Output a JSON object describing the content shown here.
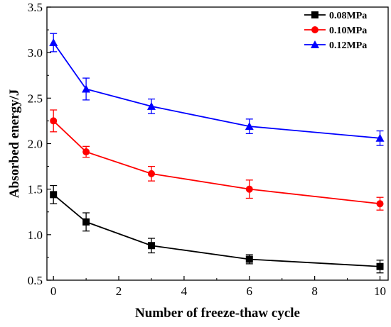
{
  "chart_data": {
    "type": "line",
    "xlabel": "Number of freeze-thaw cycle",
    "ylabel": "Absorbed energy/J",
    "xlim": [
      -0.2,
      10.25
    ],
    "ylim": [
      0.5,
      3.5
    ],
    "xticks": [
      0,
      2,
      4,
      6,
      8,
      10
    ],
    "yticks": [
      0.5,
      1.0,
      1.5,
      2.0,
      2.5,
      3.0,
      3.5
    ],
    "xtick_labels": [
      "0",
      "2",
      "4",
      "6",
      "8",
      "10"
    ],
    "ytick_labels": [
      "0.5",
      "1.0",
      "1.5",
      "2.0",
      "2.5",
      "3.0",
      "3.5"
    ],
    "legend_position": "top-right",
    "grid": false,
    "x": [
      0,
      1,
      3,
      6,
      10
    ],
    "series": [
      {
        "name": "0.08MPa",
        "color": "#000000",
        "marker": "square",
        "values": [
          1.44,
          1.14,
          0.88,
          0.73,
          0.65
        ],
        "errors": [
          0.1,
          0.1,
          0.08,
          0.05,
          0.07
        ]
      },
      {
        "name": "0.10MPa",
        "color": "#ff0000",
        "marker": "circle",
        "values": [
          2.25,
          1.91,
          1.67,
          1.5,
          1.34
        ],
        "errors": [
          0.12,
          0.06,
          0.08,
          0.1,
          0.07
        ]
      },
      {
        "name": "0.12MPa",
        "color": "#0000ff",
        "marker": "triangle",
        "values": [
          3.11,
          2.6,
          2.41,
          2.19,
          2.06
        ],
        "errors": [
          0.1,
          0.12,
          0.08,
          0.08,
          0.08
        ]
      }
    ]
  }
}
